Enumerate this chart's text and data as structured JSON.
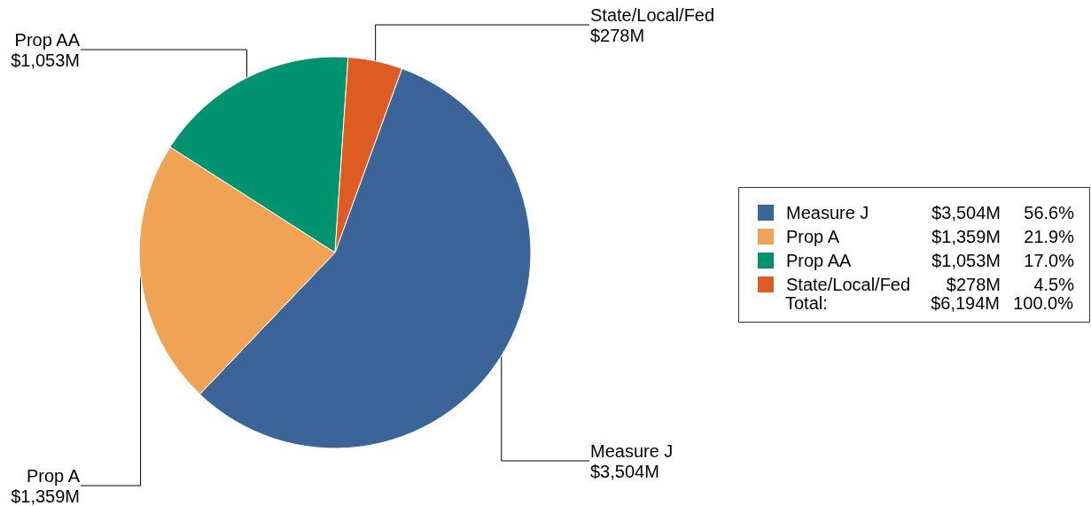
{
  "chart_data": {
    "type": "pie",
    "categories": [
      "Measure J",
      "Prop A",
      "Prop AA",
      "State/Local/Fed"
    ],
    "values": [
      3504,
      1359,
      1053,
      278
    ],
    "colors": [
      "#3b6598",
      "#f0a354",
      "#00936f",
      "#de5b21"
    ],
    "value_labels": [
      "$3,504M",
      "$1,359M",
      "$1,053M",
      "$278M"
    ],
    "legend": "right",
    "annotations": [
      "56.6%",
      "21.9%",
      "17.0%",
      "4.5%",
      "Total:",
      "$6,194M",
      "100.0%"
    ]
  }
}
